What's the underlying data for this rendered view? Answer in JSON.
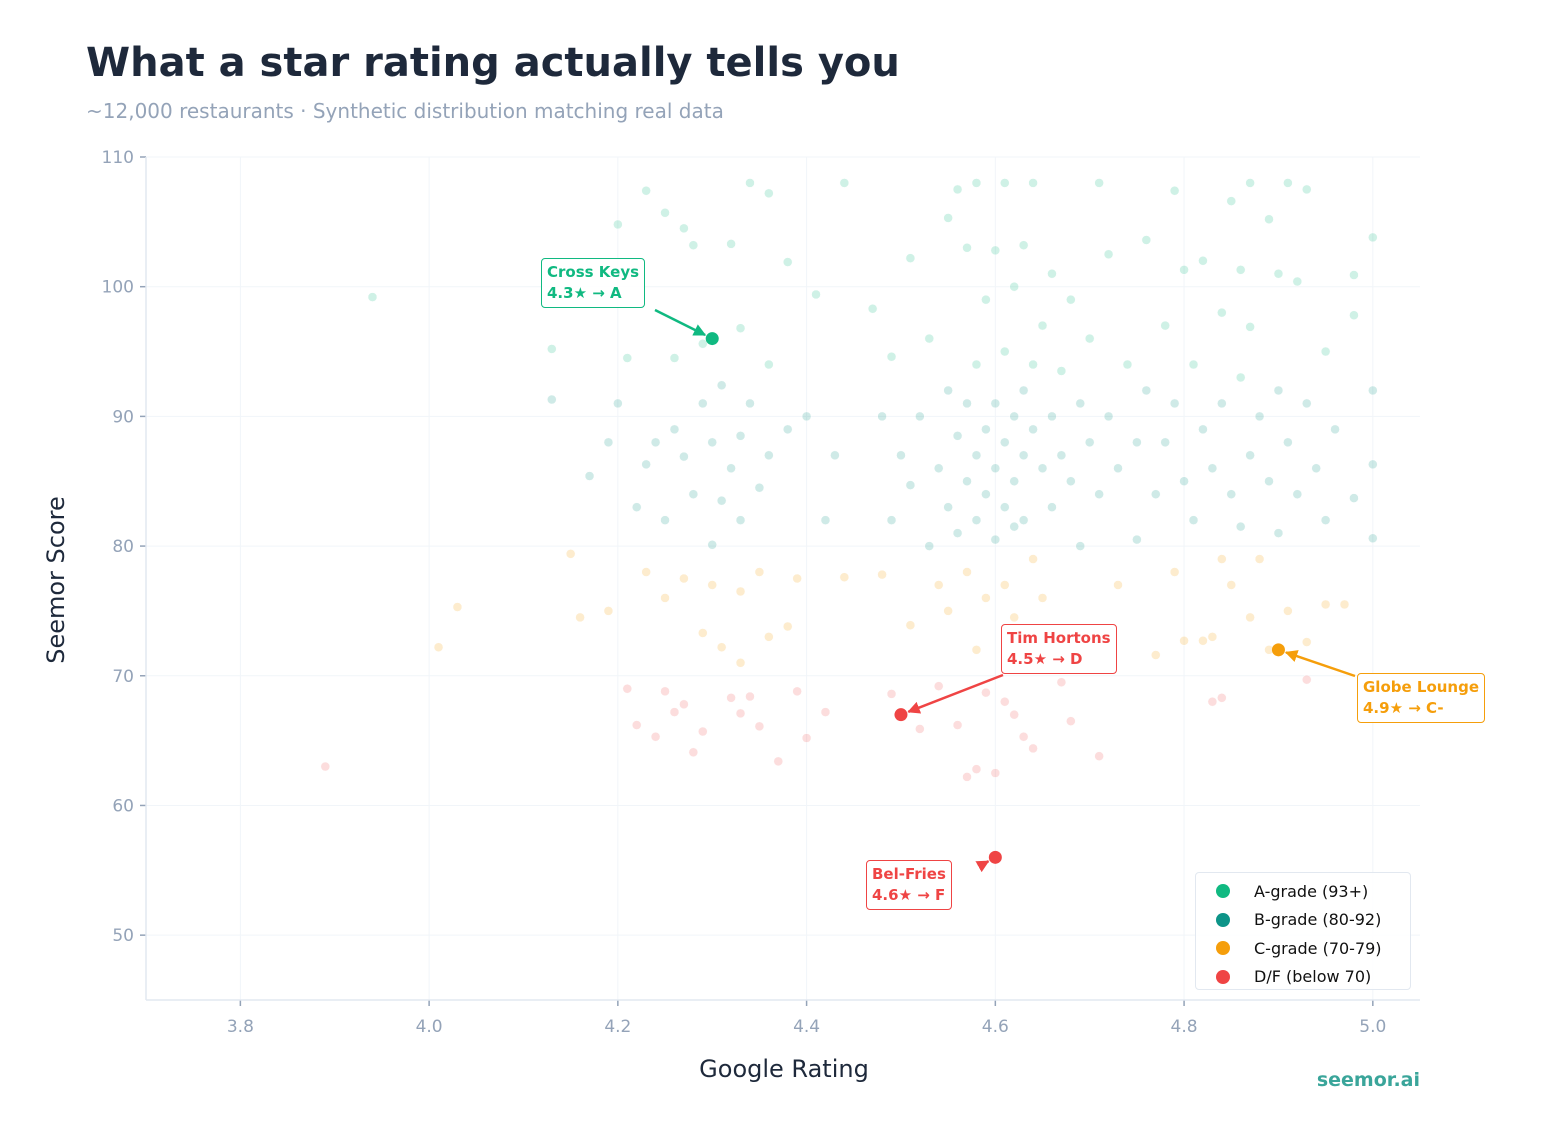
{
  "title": "What a star rating actually tells you",
  "subtitle": "~12,000 restaurants  ·  Synthetic distribution matching real data",
  "brand": "seemor.ai",
  "colors": {
    "A": "#10b981",
    "B": "#0d9488",
    "C": "#f59e0b",
    "D": "#ef4444"
  },
  "chart_data": {
    "type": "scatter",
    "title": "What a star rating actually tells you",
    "xlabel": "Google Rating",
    "ylabel": "Seemor Score",
    "xlim": [
      3.7,
      5.05
    ],
    "ylim": [
      45,
      110
    ],
    "xticks": [
      "3.8",
      "4.0",
      "4.2",
      "4.4",
      "4.6",
      "4.8",
      "5.0"
    ],
    "yticks": [
      "50",
      "60",
      "70",
      "80",
      "90",
      "100",
      "110"
    ],
    "grid": true,
    "legend_placement": "bottom-right",
    "legend": [
      {
        "label": "A-grade (93+)",
        "color": "#10b981"
      },
      {
        "label": "B-grade (80-92)",
        "color": "#0d9488"
      },
      {
        "label": "C-grade (70-79)",
        "color": "#f59e0b"
      },
      {
        "label": "D/F (below 70)",
        "color": "#ef4444"
      }
    ],
    "points": [
      [
        3.89,
        63
      ],
      [
        3.94,
        99.2
      ],
      [
        4.01,
        72.2
      ],
      [
        4.03,
        75.3
      ],
      [
        4.13,
        95.2
      ],
      [
        4.13,
        91.3
      ],
      [
        4.15,
        79.4
      ],
      [
        4.16,
        74.5
      ],
      [
        4.17,
        85.4
      ],
      [
        4.19,
        88
      ],
      [
        4.19,
        75
      ],
      [
        4.2,
        104.8
      ],
      [
        4.2,
        91
      ],
      [
        4.21,
        69
      ],
      [
        4.21,
        94.5
      ],
      [
        4.22,
        66.2
      ],
      [
        4.22,
        83
      ],
      [
        4.23,
        107.4
      ],
      [
        4.23,
        86.3
      ],
      [
        4.23,
        78
      ],
      [
        4.24,
        65.3
      ],
      [
        4.24,
        88
      ],
      [
        4.25,
        105.7
      ],
      [
        4.25,
        82
      ],
      [
        4.25,
        76
      ],
      [
        4.25,
        68.8
      ],
      [
        4.26,
        94.5
      ],
      [
        4.26,
        89
      ],
      [
        4.26,
        67.2
      ],
      [
        4.27,
        104.5
      ],
      [
        4.27,
        86.9
      ],
      [
        4.27,
        77.5
      ],
      [
        4.27,
        67.8
      ],
      [
        4.28,
        103.2
      ],
      [
        4.28,
        84
      ],
      [
        4.28,
        64.1
      ],
      [
        4.29,
        95.6
      ],
      [
        4.29,
        91
      ],
      [
        4.29,
        73.3
      ],
      [
        4.29,
        65.7
      ],
      [
        4.3,
        88
      ],
      [
        4.3,
        80.1
      ],
      [
        4.3,
        77
      ],
      [
        4.31,
        92.4
      ],
      [
        4.31,
        83.5
      ],
      [
        4.31,
        72.2
      ],
      [
        4.32,
        103.3
      ],
      [
        4.32,
        86
      ],
      [
        4.32,
        68.3
      ],
      [
        4.33,
        96.8
      ],
      [
        4.33,
        88.5
      ],
      [
        4.33,
        82
      ],
      [
        4.33,
        76.5
      ],
      [
        4.33,
        71
      ],
      [
        4.33,
        67.1
      ],
      [
        4.34,
        68.4
      ],
      [
        4.34,
        108
      ],
      [
        4.34,
        91
      ],
      [
        4.35,
        84.5
      ],
      [
        4.35,
        78
      ],
      [
        4.35,
        66.1
      ],
      [
        4.36,
        107.2
      ],
      [
        4.36,
        94
      ],
      [
        4.36,
        87
      ],
      [
        4.36,
        73
      ],
      [
        4.37,
        63.4
      ],
      [
        4.38,
        101.9
      ],
      [
        4.38,
        89
      ],
      [
        4.38,
        73.8
      ],
      [
        4.39,
        68.8
      ],
      [
        4.39,
        77.5
      ],
      [
        4.4,
        90
      ],
      [
        4.4,
        65.2
      ],
      [
        4.41,
        99.4
      ],
      [
        4.42,
        82
      ],
      [
        4.42,
        67.2
      ],
      [
        4.43,
        87
      ],
      [
        4.44,
        108
      ],
      [
        4.44,
        77.6
      ],
      [
        4.47,
        98.3
      ],
      [
        4.48,
        90
      ],
      [
        4.48,
        77.8
      ],
      [
        4.49,
        94.6
      ],
      [
        4.49,
        68.6
      ],
      [
        4.49,
        82
      ],
      [
        4.5,
        87
      ],
      [
        4.51,
        102.2
      ],
      [
        4.51,
        84.7
      ],
      [
        4.51,
        73.9
      ],
      [
        4.52,
        90
      ],
      [
        4.52,
        65.9
      ],
      [
        4.53,
        96
      ],
      [
        4.53,
        80
      ],
      [
        4.54,
        86
      ],
      [
        4.54,
        77
      ],
      [
        4.54,
        69.2
      ],
      [
        4.55,
        105.3
      ],
      [
        4.55,
        92
      ],
      [
        4.55,
        83
      ],
      [
        4.55,
        75
      ],
      [
        4.56,
        107.5
      ],
      [
        4.56,
        88.5
      ],
      [
        4.56,
        81
      ],
      [
        4.56,
        66.2
      ],
      [
        4.57,
        103
      ],
      [
        4.57,
        91
      ],
      [
        4.57,
        85
      ],
      [
        4.57,
        78
      ],
      [
        4.57,
        62.2
      ],
      [
        4.58,
        108
      ],
      [
        4.58,
        94
      ],
      [
        4.58,
        87
      ],
      [
        4.58,
        82
      ],
      [
        4.58,
        72
      ],
      [
        4.58,
        62.8
      ],
      [
        4.59,
        99
      ],
      [
        4.59,
        89
      ],
      [
        4.59,
        84
      ],
      [
        4.59,
        76
      ],
      [
        4.59,
        68.7
      ],
      [
        4.6,
        102.8
      ],
      [
        4.6,
        91
      ],
      [
        4.6,
        86
      ],
      [
        4.6,
        80.5
      ],
      [
        4.6,
        62.5
      ],
      [
        4.61,
        108
      ],
      [
        4.61,
        95
      ],
      [
        4.61,
        88
      ],
      [
        4.61,
        83
      ],
      [
        4.61,
        77
      ],
      [
        4.61,
        68
      ],
      [
        4.62,
        100
      ],
      [
        4.62,
        90
      ],
      [
        4.62,
        85
      ],
      [
        4.62,
        81.5
      ],
      [
        4.62,
        74.5
      ],
      [
        4.62,
        67
      ],
      [
        4.63,
        103.2
      ],
      [
        4.63,
        92
      ],
      [
        4.63,
        87
      ],
      [
        4.63,
        82
      ],
      [
        4.63,
        65.3
      ],
      [
        4.64,
        108
      ],
      [
        4.64,
        94
      ],
      [
        4.64,
        89
      ],
      [
        4.64,
        79
      ],
      [
        4.64,
        64.4
      ],
      [
        4.65,
        97
      ],
      [
        4.65,
        86
      ],
      [
        4.65,
        76
      ],
      [
        4.66,
        101
      ],
      [
        4.66,
        90
      ],
      [
        4.66,
        83
      ],
      [
        4.67,
        93.5
      ],
      [
        4.67,
        87
      ],
      [
        4.67,
        69.5
      ],
      [
        4.68,
        99
      ],
      [
        4.68,
        85
      ],
      [
        4.68,
        66.5
      ],
      [
        4.69,
        91
      ],
      [
        4.69,
        80
      ],
      [
        4.7,
        96
      ],
      [
        4.7,
        88
      ],
      [
        4.71,
        108
      ],
      [
        4.71,
        84
      ],
      [
        4.71,
        63.8
      ],
      [
        4.72,
        102.5
      ],
      [
        4.72,
        90
      ],
      [
        4.73,
        86
      ],
      [
        4.73,
        77
      ],
      [
        4.74,
        94
      ],
      [
        4.75,
        88
      ],
      [
        4.75,
        80.5
      ],
      [
        4.76,
        103.6
      ],
      [
        4.76,
        92
      ],
      [
        4.77,
        84
      ],
      [
        4.77,
        71.6
      ],
      [
        4.78,
        97
      ],
      [
        4.78,
        88
      ],
      [
        4.79,
        107.4
      ],
      [
        4.79,
        91
      ],
      [
        4.79,
        78
      ],
      [
        4.8,
        101.3
      ],
      [
        4.8,
        85
      ],
      [
        4.8,
        72.7
      ],
      [
        4.81,
        94
      ],
      [
        4.81,
        82
      ],
      [
        4.82,
        102
      ],
      [
        4.82,
        89
      ],
      [
        4.82,
        72.7
      ],
      [
        4.83,
        86
      ],
      [
        4.83,
        68
      ],
      [
        4.83,
        73
      ],
      [
        4.84,
        98
      ],
      [
        4.84,
        91
      ],
      [
        4.84,
        79
      ],
      [
        4.84,
        68.3
      ],
      [
        4.85,
        106.6
      ],
      [
        4.85,
        84
      ],
      [
        4.85,
        77
      ],
      [
        4.86,
        101.3
      ],
      [
        4.86,
        93
      ],
      [
        4.86,
        81.5
      ],
      [
        4.87,
        108
      ],
      [
        4.87,
        96.9
      ],
      [
        4.87,
        87
      ],
      [
        4.87,
        74.5
      ],
      [
        4.88,
        90
      ],
      [
        4.88,
        79
      ],
      [
        4.89,
        105.2
      ],
      [
        4.89,
        85
      ],
      [
        4.89,
        72
      ],
      [
        4.9,
        101
      ],
      [
        4.9,
        92
      ],
      [
        4.9,
        81
      ],
      [
        4.91,
        108
      ],
      [
        4.91,
        88
      ],
      [
        4.91,
        75
      ],
      [
        4.92,
        100.4
      ],
      [
        4.92,
        84
      ],
      [
        4.93,
        107.5
      ],
      [
        4.93,
        91
      ],
      [
        4.93,
        72.6
      ],
      [
        4.93,
        69.7
      ],
      [
        4.94,
        86
      ],
      [
        4.95,
        95
      ],
      [
        4.95,
        82
      ],
      [
        4.95,
        75.5
      ],
      [
        4.96,
        89
      ],
      [
        4.97,
        75.5
      ],
      [
        4.98,
        97.8
      ],
      [
        4.98,
        100.9
      ],
      [
        4.98,
        83.7
      ],
      [
        5.0,
        103.8
      ],
      [
        5.0,
        92
      ],
      [
        5.0,
        86.3
      ],
      [
        5.0,
        80.6
      ]
    ],
    "highlights": [
      {
        "name": "Cross Keys",
        "rating": "4.3★",
        "grade": "A",
        "x": 4.3,
        "y": 96,
        "color": "#10b981",
        "label_line2": "4.3★ → A"
      },
      {
        "name": "Tim Hortons",
        "rating": "4.5★",
        "grade": "D",
        "x": 4.5,
        "y": 67,
        "color": "#ef4444",
        "label_line2": "4.5★ → D"
      },
      {
        "name": "Globe Lounge",
        "rating": "4.9★",
        "grade": "C-",
        "x": 4.9,
        "y": 72,
        "color": "#f59e0b",
        "label_line2": "4.9★ → C-"
      },
      {
        "name": "Bel-Fries",
        "rating": "4.6★",
        "grade": "F",
        "x": 4.6,
        "y": 56,
        "color": "#ef4444",
        "label_line2": "4.6★ → F"
      }
    ]
  }
}
